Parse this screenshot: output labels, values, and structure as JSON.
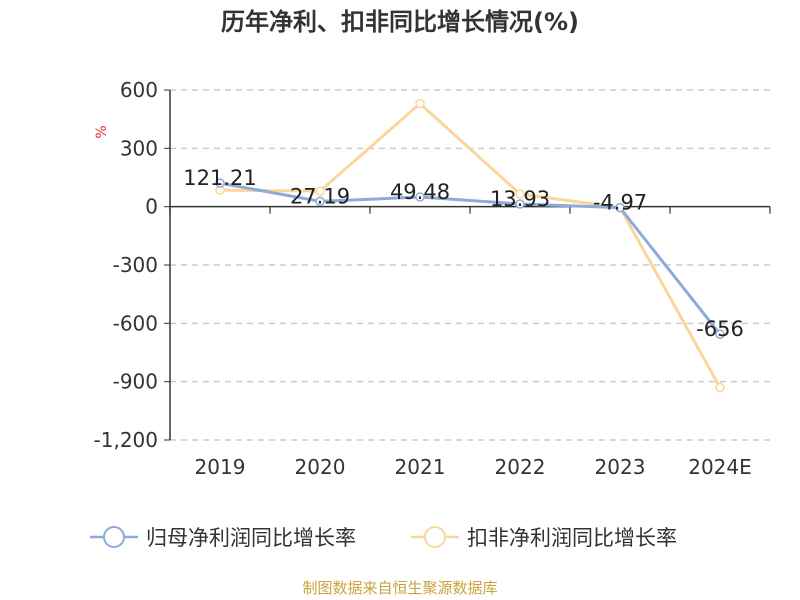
{
  "page_title": "历年净利、扣非同比增长情况(%)",
  "source_note": "制图数据来自恒生聚源数据库",
  "colors": {
    "series1": "#8eaadb",
    "series2": "#fad69a",
    "grid": "#cccccc",
    "axis": "#333333",
    "unit": "#e0302c",
    "source": "#c8a43a"
  },
  "chart_data": {
    "type": "line",
    "title": "历年净利、扣非同比增长情况(%)",
    "ylabel": "%",
    "categories": [
      "2019",
      "2020",
      "2021",
      "2022",
      "2023",
      "2024E"
    ],
    "ylim": [
      -1200,
      600
    ],
    "yticks": [
      600,
      300,
      0,
      -300,
      -600,
      -900,
      -1200
    ],
    "ytick_labels": [
      "600",
      "300",
      "0",
      "-300",
      "-600",
      "-900",
      "-1,200"
    ],
    "grid": true,
    "legend_position": "bottom",
    "series": [
      {
        "name": "归母净利润同比增长率",
        "values": [
          121.21,
          27.19,
          49.48,
          13.93,
          -4.97,
          -656
        ],
        "data_labels": [
          "121.21",
          "27.19",
          "49.48",
          "13.93",
          "-4.97",
          "-656"
        ]
      },
      {
        "name": "扣非净利润同比增长率",
        "values": [
          85,
          80,
          530,
          65,
          -5,
          -930
        ]
      }
    ]
  }
}
